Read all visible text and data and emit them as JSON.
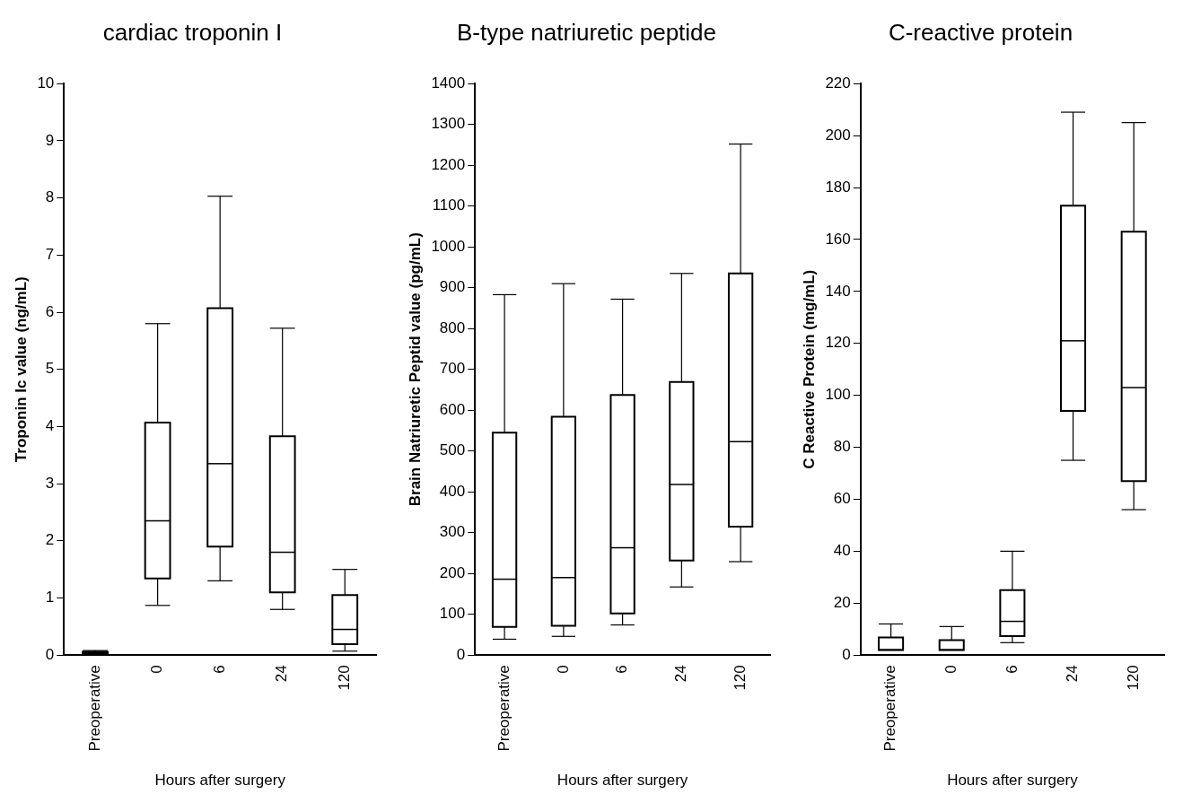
{
  "chart_data": [
    {
      "type": "box",
      "title": "cardiac troponin I",
      "xlabel": "Hours after surgery",
      "ylabel": "Troponin Ic value (ng/mL)",
      "categories": [
        "Preoperative",
        "0",
        "6",
        "24",
        "120"
      ],
      "ylim": [
        0,
        10
      ],
      "yticks": [
        0,
        1,
        2,
        3,
        4,
        5,
        6,
        7,
        8,
        9,
        10
      ],
      "grid": false,
      "legend": false,
      "color": "#000000",
      "boxes": [
        {
          "low": 0.01,
          "q1": 0.02,
          "median": 0.04,
          "q3": 0.06,
          "high": 0.08
        },
        {
          "low": 0.87,
          "q1": 1.34,
          "median": 2.35,
          "q3": 4.07,
          "high": 5.8
        },
        {
          "low": 1.3,
          "q1": 1.9,
          "median": 3.35,
          "q3": 6.07,
          "high": 8.03
        },
        {
          "low": 0.8,
          "q1": 1.1,
          "median": 1.8,
          "q3": 3.83,
          "high": 5.72
        },
        {
          "low": 0.07,
          "q1": 0.19,
          "median": 0.45,
          "q3": 1.05,
          "high": 1.5
        }
      ]
    },
    {
      "type": "box",
      "title": "B-type natriuretic peptide",
      "xlabel": "Hours after surgery",
      "ylabel": "Brain Natriuretic Peptid value (pg/mL)",
      "categories": [
        "Preoperative",
        "0",
        "6",
        "24",
        "120"
      ],
      "ylim": [
        0,
        1400
      ],
      "yticks": [
        0,
        100,
        200,
        300,
        400,
        500,
        600,
        700,
        800,
        900,
        1000,
        1100,
        1200,
        1300,
        1400
      ],
      "grid": false,
      "legend": false,
      "color": "#000000",
      "boxes": [
        {
          "low": 39,
          "q1": 69,
          "median": 186,
          "q3": 545,
          "high": 883
        },
        {
          "low": 46,
          "q1": 72,
          "median": 190,
          "q3": 584,
          "high": 910
        },
        {
          "low": 74,
          "q1": 102,
          "median": 263,
          "q3": 637,
          "high": 872
        },
        {
          "low": 167,
          "q1": 232,
          "median": 418,
          "q3": 669,
          "high": 935
        },
        {
          "low": 229,
          "q1": 315,
          "median": 523,
          "q3": 935,
          "high": 1252
        }
      ]
    },
    {
      "type": "box",
      "title": "C-reactive protein",
      "xlabel": "Hours after surgery",
      "ylabel": "C Reactive Protein (mg/mL)",
      "categories": [
        "Preoperative",
        "0",
        "6",
        "24",
        "120"
      ],
      "ylim": [
        0,
        220
      ],
      "yticks": [
        0,
        20,
        40,
        60,
        80,
        100,
        120,
        140,
        160,
        180,
        200,
        220
      ],
      "grid": false,
      "legend": false,
      "color": "#000000",
      "boxes": [
        {
          "low": 2,
          "q1": 2,
          "median": 2,
          "q3": 6.8,
          "high": 12
        },
        {
          "low": 2,
          "q1": 2,
          "median": 2,
          "q3": 5.8,
          "high": 11
        },
        {
          "low": 4.8,
          "q1": 7.3,
          "median": 13,
          "q3": 25,
          "high": 40
        },
        {
          "low": 75,
          "q1": 94,
          "median": 121,
          "q3": 173,
          "high": 209
        },
        {
          "low": 56,
          "q1": 67,
          "median": 103,
          "q3": 163,
          "high": 205
        }
      ]
    }
  ]
}
